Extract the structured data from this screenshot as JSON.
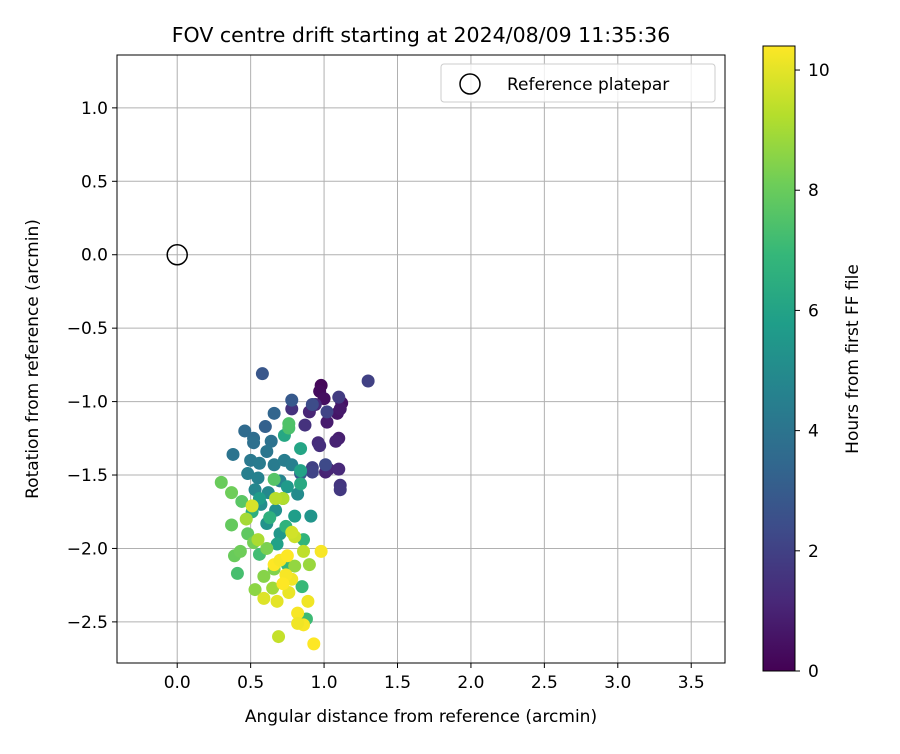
{
  "chart_data": {
    "type": "scatter",
    "title": "FOV centre drift starting at 2024/08/09 11:35:36",
    "xlabel": "Angular distance from reference (arcmin)",
    "ylabel": "Rotation from reference (arcmin)",
    "xlim": [
      -0.41,
      3.73
    ],
    "ylim": [
      -2.78,
      1.36
    ],
    "xticks": [
      0.0,
      0.5,
      1.0,
      1.5,
      2.0,
      2.5,
      3.0,
      3.5
    ],
    "xtick_labels": [
      "0.0",
      "0.5",
      "1.0",
      "1.5",
      "2.0",
      "2.5",
      "3.0",
      "3.5"
    ],
    "yticks": [
      1.0,
      0.5,
      0.0,
      -0.5,
      -1.0,
      -1.5,
      -2.0,
      -2.5
    ],
    "ytick_labels": [
      "1.0",
      "0.5",
      "0.0",
      "−0.5",
      "−1.0",
      "−1.5",
      "−2.0",
      "−2.5"
    ],
    "grid": true,
    "legend_position": "top-right",
    "legend": [
      {
        "label": "Reference platepar",
        "marker": "open-circle",
        "color": "#000000"
      }
    ],
    "reference_point": {
      "x": 0.0,
      "y": 0.0
    },
    "colorbar": {
      "label": "Hours from first FF file",
      "min": 0,
      "max": 10.4,
      "ticks": [
        0,
        2,
        4,
        6,
        8,
        10
      ],
      "tick_labels": [
        "0",
        "2",
        "4",
        "6",
        "8",
        "10"
      ],
      "colormap": "viridis"
    },
    "points": [
      {
        "x": 0.98,
        "y": -0.89,
        "t": 0.2
      },
      {
        "x": 0.97,
        "y": -0.93,
        "t": 0.3
      },
      {
        "x": 1.0,
        "y": -0.98,
        "t": 0.4
      },
      {
        "x": 1.12,
        "y": -1.01,
        "t": 0.5
      },
      {
        "x": 1.09,
        "y": -1.08,
        "t": 0.6
      },
      {
        "x": 1.11,
        "y": -1.05,
        "t": 0.7
      },
      {
        "x": 1.02,
        "y": -1.14,
        "t": 0.8
      },
      {
        "x": 1.1,
        "y": -1.25,
        "t": 0.9
      },
      {
        "x": 1.08,
        "y": -1.27,
        "t": 1.0
      },
      {
        "x": 0.9,
        "y": -1.07,
        "t": 1.1
      },
      {
        "x": 0.94,
        "y": -1.02,
        "t": 1.2
      },
      {
        "x": 1.01,
        "y": -1.48,
        "t": 1.0
      },
      {
        "x": 1.03,
        "y": -1.46,
        "t": 1.1
      },
      {
        "x": 1.1,
        "y": -1.46,
        "t": 1.2
      },
      {
        "x": 0.96,
        "y": -1.28,
        "t": 1.3
      },
      {
        "x": 0.97,
        "y": -1.3,
        "t": 1.4
      },
      {
        "x": 0.87,
        "y": -1.16,
        "t": 1.5
      },
      {
        "x": 0.78,
        "y": -1.05,
        "t": 1.5
      },
      {
        "x": 1.11,
        "y": -1.57,
        "t": 1.6
      },
      {
        "x": 1.11,
        "y": -1.6,
        "t": 1.7
      },
      {
        "x": 1.1,
        "y": -0.97,
        "t": 1.8
      },
      {
        "x": 1.3,
        "y": -0.86,
        "t": 2.0
      },
      {
        "x": 0.92,
        "y": -1.45,
        "t": 2.0
      },
      {
        "x": 0.92,
        "y": -1.48,
        "t": 2.1
      },
      {
        "x": 1.02,
        "y": -1.07,
        "t": 2.1
      },
      {
        "x": 1.01,
        "y": -1.43,
        "t": 2.3
      },
      {
        "x": 0.92,
        "y": -1.02,
        "t": 2.4
      },
      {
        "x": 0.58,
        "y": -0.81,
        "t": 2.8
      },
      {
        "x": 0.78,
        "y": -0.99,
        "t": 2.9
      },
      {
        "x": 0.84,
        "y": -1.49,
        "t": 3.0
      },
      {
        "x": 0.6,
        "y": -1.17,
        "t": 3.2
      },
      {
        "x": 0.66,
        "y": -1.08,
        "t": 3.4
      },
      {
        "x": 0.46,
        "y": -1.2,
        "t": 3.6
      },
      {
        "x": 0.52,
        "y": -1.25,
        "t": 3.7
      },
      {
        "x": 0.52,
        "y": -1.28,
        "t": 3.8
      },
      {
        "x": 0.64,
        "y": -1.27,
        "t": 3.9
      },
      {
        "x": 0.38,
        "y": -1.36,
        "t": 4.0
      },
      {
        "x": 0.61,
        "y": -1.34,
        "t": 4.1
      },
      {
        "x": 0.5,
        "y": -1.4,
        "t": 4.2
      },
      {
        "x": 0.56,
        "y": -1.42,
        "t": 4.3
      },
      {
        "x": 0.66,
        "y": -1.43,
        "t": 4.3
      },
      {
        "x": 0.73,
        "y": -1.4,
        "t": 4.4
      },
      {
        "x": 0.78,
        "y": -1.43,
        "t": 4.5
      },
      {
        "x": 0.48,
        "y": -1.49,
        "t": 4.5
      },
      {
        "x": 0.55,
        "y": -1.52,
        "t": 4.6
      },
      {
        "x": 0.7,
        "y": -1.54,
        "t": 4.7
      },
      {
        "x": 0.53,
        "y": -1.6,
        "t": 4.8
      },
      {
        "x": 0.62,
        "y": -1.62,
        "t": 4.9
      },
      {
        "x": 0.82,
        "y": -1.63,
        "t": 5.0
      },
      {
        "x": 0.57,
        "y": -1.7,
        "t": 5.1
      },
      {
        "x": 0.67,
        "y": -1.74,
        "t": 5.2
      },
      {
        "x": 0.61,
        "y": -1.83,
        "t": 5.3
      },
      {
        "x": 0.91,
        "y": -1.78,
        "t": 5.4
      },
      {
        "x": 0.7,
        "y": -1.9,
        "t": 5.5
      },
      {
        "x": 0.75,
        "y": -1.58,
        "t": 5.6
      },
      {
        "x": 0.56,
        "y": -1.66,
        "t": 5.7
      },
      {
        "x": 0.8,
        "y": -1.78,
        "t": 5.8
      },
      {
        "x": 0.68,
        "y": -1.97,
        "t": 5.9
      },
      {
        "x": 0.84,
        "y": -1.47,
        "t": 6.0
      },
      {
        "x": 0.84,
        "y": -1.32,
        "t": 6.1
      },
      {
        "x": 0.73,
        "y": -1.23,
        "t": 6.2
      },
      {
        "x": 0.84,
        "y": -1.56,
        "t": 6.3
      },
      {
        "x": 0.72,
        "y": -1.66,
        "t": 6.4
      },
      {
        "x": 0.51,
        "y": -1.75,
        "t": 6.5
      },
      {
        "x": 0.63,
        "y": -1.79,
        "t": 6.6
      },
      {
        "x": 0.74,
        "y": -1.85,
        "t": 6.7
      },
      {
        "x": 0.86,
        "y": -1.94,
        "t": 6.8
      },
      {
        "x": 0.75,
        "y": -2.11,
        "t": 6.9
      },
      {
        "x": 0.85,
        "y": -2.26,
        "t": 7.0
      },
      {
        "x": 0.88,
        "y": -2.48,
        "t": 7.1
      },
      {
        "x": 0.56,
        "y": -2.04,
        "t": 7.2
      },
      {
        "x": 0.41,
        "y": -2.17,
        "t": 7.3
      },
      {
        "x": 0.76,
        "y": -1.18,
        "t": 7.4
      },
      {
        "x": 0.76,
        "y": -1.15,
        "t": 7.5
      },
      {
        "x": 0.66,
        "y": -1.53,
        "t": 7.6
      },
      {
        "x": 0.44,
        "y": -1.68,
        "t": 7.7
      },
      {
        "x": 0.48,
        "y": -1.9,
        "t": 7.8
      },
      {
        "x": 0.37,
        "y": -1.84,
        "t": 7.9
      },
      {
        "x": 0.39,
        "y": -2.05,
        "t": 8.0
      },
      {
        "x": 0.43,
        "y": -2.02,
        "t": 8.1
      },
      {
        "x": 0.52,
        "y": -1.96,
        "t": 8.2
      },
      {
        "x": 0.61,
        "y": -2.0,
        "t": 8.3
      },
      {
        "x": 0.66,
        "y": -2.14,
        "t": 8.4
      },
      {
        "x": 0.59,
        "y": -2.19,
        "t": 8.5
      },
      {
        "x": 0.53,
        "y": -2.28,
        "t": 8.6
      },
      {
        "x": 0.3,
        "y": -1.55,
        "t": 8.0
      },
      {
        "x": 0.37,
        "y": -1.62,
        "t": 8.1
      },
      {
        "x": 0.8,
        "y": -2.12,
        "t": 8.7
      },
      {
        "x": 0.9,
        "y": -2.11,
        "t": 8.8
      },
      {
        "x": 0.65,
        "y": -2.27,
        "t": 8.9
      },
      {
        "x": 0.47,
        "y": -1.8,
        "t": 9.0
      },
      {
        "x": 0.55,
        "y": -1.94,
        "t": 9.1
      },
      {
        "x": 0.72,
        "y": -1.66,
        "t": 9.2
      },
      {
        "x": 0.67,
        "y": -1.66,
        "t": 9.3
      },
      {
        "x": 0.86,
        "y": -2.02,
        "t": 9.4
      },
      {
        "x": 0.69,
        "y": -2.6,
        "t": 9.5
      },
      {
        "x": 0.8,
        "y": -1.92,
        "t": 9.6
      },
      {
        "x": 0.78,
        "y": -1.89,
        "t": 9.7
      },
      {
        "x": 0.51,
        "y": -1.71,
        "t": 9.8
      },
      {
        "x": 0.59,
        "y": -2.34,
        "t": 9.9
      },
      {
        "x": 0.68,
        "y": -2.36,
        "t": 10.0
      },
      {
        "x": 0.76,
        "y": -2.3,
        "t": 10.1
      },
      {
        "x": 0.89,
        "y": -2.36,
        "t": 10.2
      },
      {
        "x": 0.82,
        "y": -2.44,
        "t": 10.3
      },
      {
        "x": 0.86,
        "y": -2.52,
        "t": 10.3
      },
      {
        "x": 0.82,
        "y": -2.51,
        "t": 10.2
      },
      {
        "x": 0.93,
        "y": -2.65,
        "t": 10.4
      },
      {
        "x": 0.98,
        "y": -2.02,
        "t": 10.3
      },
      {
        "x": 0.66,
        "y": -2.11,
        "t": 10.4
      },
      {
        "x": 0.7,
        "y": -2.08,
        "t": 10.3
      },
      {
        "x": 0.75,
        "y": -2.05,
        "t": 10.4
      },
      {
        "x": 0.78,
        "y": -2.21,
        "t": 10.2
      },
      {
        "x": 0.74,
        "y": -2.18,
        "t": 10.3
      },
      {
        "x": 0.72,
        "y": -2.24,
        "t": 10.4
      }
    ]
  }
}
